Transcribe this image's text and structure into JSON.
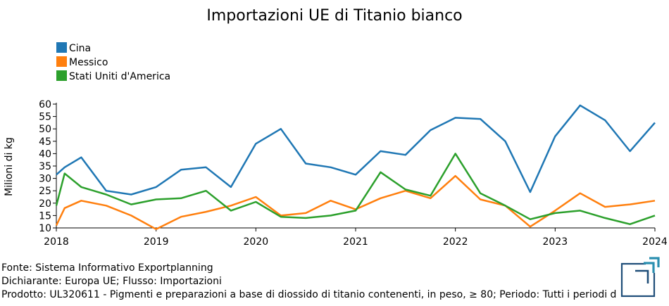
{
  "chart_data": {
    "type": "line",
    "title": "Importazioni UE di Titanio bianco",
    "xlabel": "",
    "ylabel": "Milioni di kg",
    "ylim": [
      10,
      60
    ],
    "xlim": [
      2018.0,
      2024.0
    ],
    "y_ticks": [
      "10",
      "15",
      "20",
      "25",
      "30",
      "35",
      "40",
      "45",
      "50",
      "55",
      "60"
    ],
    "x_ticks": [
      "2018",
      "2019",
      "2020",
      "2021",
      "2022",
      "2023",
      "2024"
    ],
    "x": [
      2018.0,
      2018.0833,
      2018.25,
      2018.5,
      2018.75,
      2019.0,
      2019.25,
      2019.5,
      2019.75,
      2020.0,
      2020.25,
      2020.5,
      2020.75,
      2021.0,
      2021.25,
      2021.5,
      2021.75,
      2022.0,
      2022.25,
      2022.5,
      2022.75,
      2023.0,
      2023.25,
      2023.5,
      2023.75,
      2024.0
    ],
    "series": [
      {
        "name": "Cina",
        "color": "#1f77b4",
        "values": [
          31.5,
          34.5,
          38.5,
          25.0,
          23.5,
          26.5,
          33.5,
          34.5,
          26.5,
          44.0,
          50.0,
          36.0,
          34.5,
          31.5,
          41.0,
          39.5,
          49.5,
          54.5,
          54.0,
          45.0,
          24.5,
          47.0,
          59.5,
          53.5,
          41.0,
          52.5
        ]
      },
      {
        "name": "Messico",
        "color": "#ff7f0e",
        "values": [
          11.0,
          18.0,
          21.0,
          19.0,
          15.0,
          9.5,
          14.5,
          16.5,
          19.0,
          22.5,
          15.0,
          16.0,
          21.0,
          17.5,
          22.0,
          25.0,
          22.0,
          31.0,
          21.5,
          19.0,
          10.5,
          17.0,
          24.0,
          18.5,
          19.5,
          21.0
        ]
      },
      {
        "name": "Stati Uniti d'America",
        "color": "#2ca02c",
        "values": [
          19.0,
          32.0,
          26.5,
          23.5,
          19.5,
          21.5,
          22.0,
          25.0,
          17.0,
          20.5,
          14.5,
          14.0,
          15.0,
          17.0,
          32.5,
          25.5,
          23.0,
          40.0,
          24.0,
          19.0,
          13.5,
          16.0,
          17.0,
          14.0,
          11.5,
          15.0
        ]
      }
    ],
    "legend_position": "top-left",
    "grid": false
  },
  "footer": {
    "source": "Fonte: Sistema Informativo Exportplanning",
    "declarant": "Dichiarante: Europa UE; Flusso: Importazioni",
    "product": "Prodotto: UL320611 - Pigmenti e preparazioni a base di diossido di titanio contenenti, in peso, ≥ 80; Periodo: Tutti i periodi d"
  },
  "logo": {
    "icon": "exportplanning-logo-icon",
    "colors": [
      "#2b8fb0",
      "#1f4e79"
    ]
  }
}
